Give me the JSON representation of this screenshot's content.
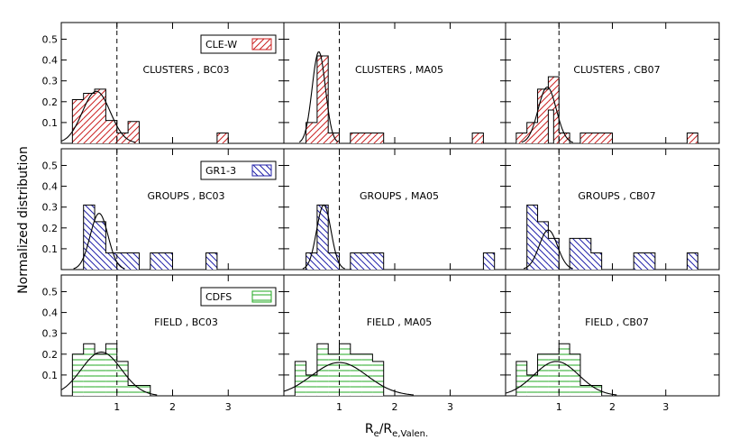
{
  "figure": {
    "ylabel": "Normalized distribution",
    "xlabel_main": "R",
    "xlabel_sub1": "e",
    "xlabel_mid": "/R",
    "xlabel_sub2": "e,Valen."
  },
  "chart_data": {
    "type": "bar",
    "layout": "3x3 grid of step histograms with gaussian fits",
    "x_axis": {
      "xlim": [
        0,
        4.0
      ],
      "ticks": [
        1,
        2,
        3
      ],
      "tick_labels": [
        "1",
        "2",
        "3"
      ],
      "reference_line_x": 1.0
    },
    "y_axis": {
      "ylim": [
        0,
        0.58
      ],
      "ticks": [
        0.1,
        0.2,
        0.3,
        0.4,
        0.5
      ],
      "tick_labels": [
        "0.1",
        "0.2",
        "0.3",
        "0.4",
        "0.5"
      ]
    },
    "grid": false,
    "rows": [
      {
        "name": "CLE-W",
        "legend_label": "CLE-W",
        "color": "#cc2222",
        "hatch": "diagonal-up",
        "panels": [
          {
            "label": "CLUSTERS , BC03",
            "bins": [
              [
                0.2,
                0.4,
                0.21
              ],
              [
                0.4,
                0.6,
                0.24
              ],
              [
                0.6,
                0.8,
                0.26
              ],
              [
                0.8,
                1.0,
                0.11
              ],
              [
                1.0,
                1.2,
                0.05
              ],
              [
                1.2,
                1.4,
                0.105
              ],
              [
                1.4,
                1.6,
                0.0
              ],
              [
                1.6,
                1.8,
                0.0
              ],
              [
                1.8,
                2.0,
                0.0
              ],
              [
                2.0,
                2.2,
                0.0
              ],
              [
                2.2,
                2.4,
                0.0
              ],
              [
                2.4,
                2.6,
                0.0
              ],
              [
                2.6,
                2.8,
                0.0
              ],
              [
                2.8,
                3.0,
                0.05
              ]
            ],
            "fit": {
              "amplitude": 0.25,
              "mean": 0.63,
              "sigma": 0.25
            }
          },
          {
            "label": "CLUSTERS , MA05",
            "bins": [
              [
                0.4,
                0.6,
                0.1
              ],
              [
                0.6,
                0.8,
                0.42
              ],
              [
                0.8,
                1.0,
                0.05
              ],
              [
                1.0,
                1.2,
                0.0
              ],
              [
                1.2,
                1.4,
                0.05
              ],
              [
                1.4,
                1.6,
                0.05
              ],
              [
                1.6,
                1.8,
                0.05
              ],
              [
                1.8,
                2.0,
                0.0
              ],
              [
                2.0,
                2.2,
                0.0
              ],
              [
                2.2,
                2.4,
                0.0
              ],
              [
                2.4,
                2.6,
                0.0
              ],
              [
                2.6,
                2.8,
                0.0
              ],
              [
                2.8,
                3.0,
                0.0
              ],
              [
                3.0,
                3.2,
                0.0
              ],
              [
                3.2,
                3.4,
                0.0
              ],
              [
                3.4,
                3.6,
                0.05
              ]
            ],
            "fit": {
              "amplitude": 0.44,
              "mean": 0.63,
              "sigma": 0.12
            }
          },
          {
            "label": "CLUSTERS , CB07",
            "bins": [
              [
                0.2,
                0.4,
                0.05
              ],
              [
                0.4,
                0.6,
                0.1
              ],
              [
                0.6,
                0.8,
                0.26
              ],
              [
                0.8,
                1.0,
                0.32
              ],
              [
                1.0,
                1.2,
                0.05
              ],
              [
                1.2,
                1.4,
                0.0
              ],
              [
                1.4,
                1.6,
                0.05
              ],
              [
                1.6,
                1.8,
                0.05
              ],
              [
                1.8,
                2.0,
                0.05
              ],
              [
                2.0,
                2.2,
                0.0
              ],
              [
                2.2,
                2.4,
                0.0
              ],
              [
                2.4,
                2.6,
                0.0
              ],
              [
                2.6,
                2.8,
                0.0
              ],
              [
                2.8,
                3.0,
                0.0
              ],
              [
                3.0,
                3.2,
                0.0
              ],
              [
                3.2,
                3.4,
                0.0
              ],
              [
                3.4,
                3.6,
                0.05
              ]
            ],
            "overlay_bins": [
              [
                0.8,
                0.9,
                0.16
              ]
            ],
            "fit": {
              "amplitude": 0.27,
              "mean": 0.78,
              "sigma": 0.17
            }
          }
        ]
      },
      {
        "name": "GR1-3",
        "legend_label": "GR1-3",
        "color": "#2222aa",
        "hatch": "diagonal-down",
        "panels": [
          {
            "label": "GROUPS , BC03",
            "bins": [
              [
                0.4,
                0.6,
                0.31
              ],
              [
                0.6,
                0.8,
                0.23
              ],
              [
                0.8,
                1.0,
                0.08
              ],
              [
                1.0,
                1.2,
                0.08
              ],
              [
                1.2,
                1.4,
                0.08
              ],
              [
                1.4,
                1.6,
                0.0
              ],
              [
                1.6,
                1.8,
                0.08
              ],
              [
                1.8,
                2.0,
                0.08
              ],
              [
                2.0,
                2.2,
                0.0
              ],
              [
                2.2,
                2.4,
                0.0
              ],
              [
                2.4,
                2.6,
                0.0
              ],
              [
                2.6,
                2.8,
                0.08
              ]
            ],
            "fit": {
              "amplitude": 0.27,
              "mean": 0.68,
              "sigma": 0.16
            }
          },
          {
            "label": "GROUPS , MA05",
            "bins": [
              [
                0.4,
                0.6,
                0.08
              ],
              [
                0.6,
                0.8,
                0.31
              ],
              [
                0.8,
                1.0,
                0.08
              ],
              [
                1.0,
                1.2,
                0.0
              ],
              [
                1.2,
                1.4,
                0.08
              ],
              [
                1.4,
                1.6,
                0.08
              ],
              [
                1.6,
                1.8,
                0.08
              ],
              [
                1.8,
                2.0,
                0.0
              ],
              [
                2.0,
                2.2,
                0.0
              ],
              [
                2.2,
                2.4,
                0.0
              ],
              [
                2.4,
                2.6,
                0.0
              ],
              [
                2.6,
                2.8,
                0.0
              ],
              [
                2.8,
                3.0,
                0.0
              ],
              [
                3.0,
                3.2,
                0.0
              ],
              [
                3.2,
                3.4,
                0.0
              ],
              [
                3.4,
                3.6,
                0.0
              ],
              [
                3.6,
                3.8,
                0.08
              ]
            ],
            "fit": {
              "amplitude": 0.31,
              "mean": 0.72,
              "sigma": 0.13
            }
          },
          {
            "label": "GROUPS , CB07",
            "bins": [
              [
                0.4,
                0.6,
                0.31
              ],
              [
                0.6,
                0.8,
                0.23
              ],
              [
                0.8,
                1.0,
                0.15
              ],
              [
                1.0,
                1.2,
                0.0
              ],
              [
                1.2,
                1.4,
                0.15
              ],
              [
                1.4,
                1.6,
                0.15
              ],
              [
                1.6,
                1.8,
                0.08
              ],
              [
                1.8,
                2.0,
                0.0
              ],
              [
                2.0,
                2.2,
                0.0
              ],
              [
                2.2,
                2.4,
                0.0
              ],
              [
                2.4,
                2.6,
                0.08
              ],
              [
                2.6,
                2.8,
                0.08
              ],
              [
                2.8,
                3.0,
                0.0
              ],
              [
                3.0,
                3.2,
                0.0
              ],
              [
                3.2,
                3.4,
                0.0
              ],
              [
                3.4,
                3.6,
                0.08
              ]
            ],
            "fit": {
              "amplitude": 0.19,
              "mean": 0.8,
              "sigma": 0.17
            }
          }
        ]
      },
      {
        "name": "CDFS",
        "legend_label": "CDFS",
        "color": "#22aa22",
        "hatch": "horizontal",
        "panels": [
          {
            "label": "FIELD , BC03",
            "bins": [
              [
                0.2,
                0.4,
                0.2
              ],
              [
                0.4,
                0.6,
                0.25
              ],
              [
                0.6,
                0.8,
                0.2
              ],
              [
                0.8,
                1.0,
                0.25
              ],
              [
                1.0,
                1.2,
                0.165
              ],
              [
                1.2,
                1.4,
                0.05
              ],
              [
                1.4,
                1.6,
                0.05
              ]
            ],
            "fit": {
              "amplitude": 0.21,
              "mean": 0.72,
              "sigma": 0.36
            }
          },
          {
            "label": "FIELD , MA05",
            "bins": [
              [
                0.2,
                0.4,
                0.165
              ],
              [
                0.4,
                0.6,
                0.1
              ],
              [
                0.6,
                0.8,
                0.25
              ],
              [
                0.8,
                1.0,
                0.2
              ],
              [
                1.0,
                1.2,
                0.25
              ],
              [
                1.2,
                1.4,
                0.2
              ],
              [
                1.4,
                1.6,
                0.2
              ],
              [
                1.6,
                1.8,
                0.165
              ]
            ],
            "fit": {
              "amplitude": 0.16,
              "mean": 1.0,
              "sigma": 0.5
            }
          },
          {
            "label": "FIELD , CB07",
            "bins": [
              [
                0.2,
                0.4,
                0.165
              ],
              [
                0.4,
                0.6,
                0.1
              ],
              [
                0.6,
                0.8,
                0.2
              ],
              [
                0.8,
                1.0,
                0.2
              ],
              [
                1.0,
                1.2,
                0.25
              ],
              [
                1.2,
                1.4,
                0.2
              ],
              [
                1.4,
                1.6,
                0.05
              ],
              [
                1.6,
                1.8,
                0.05
              ]
            ],
            "fit": {
              "amplitude": 0.165,
              "mean": 0.95,
              "sigma": 0.42
            }
          }
        ]
      }
    ]
  }
}
